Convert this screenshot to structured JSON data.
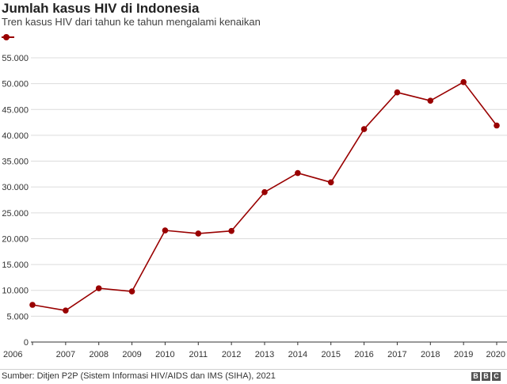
{
  "chart_data": {
    "type": "line",
    "title": "Jumlah kasus HIV di Indonesia",
    "subtitle": "Tren kasus HIV dari tahun ke tahun mengalami kenaikan",
    "categories": [
      "2006",
      "2007",
      "2008",
      "2009",
      "2010",
      "2011",
      "2012",
      "2013",
      "2014",
      "2015",
      "2016",
      "2017",
      "2018",
      "2019",
      "2020"
    ],
    "series": [
      {
        "values": [
          7200,
          6100,
          10400,
          9800,
          21600,
          21000,
          21500,
          29000,
          32700,
          30900,
          41200,
          48300,
          46700,
          50300,
          41900
        ],
        "color": "#990000"
      }
    ],
    "ylim": [
      0,
      55000
    ],
    "yticks": [
      0,
      5000,
      10000,
      15000,
      20000,
      25000,
      30000,
      35000,
      40000,
      45000,
      50000,
      55000
    ],
    "ytick_labels": [
      "0",
      "5.000",
      "10.000",
      "15.000",
      "20.000",
      "25.000",
      "30.000",
      "35.000",
      "40.000",
      "45.000",
      "50.000",
      "55.000"
    ],
    "grid": true,
    "legend": "top-left",
    "source": "Sumber: Ditjen P2P (Sistem Informasi HIV/AIDS dan IMS (SIHA), 2021",
    "logo": [
      "B",
      "B",
      "C"
    ],
    "colors": {
      "line": "#990000",
      "grid": "#dcdcdc",
      "axis": "#333333"
    }
  }
}
